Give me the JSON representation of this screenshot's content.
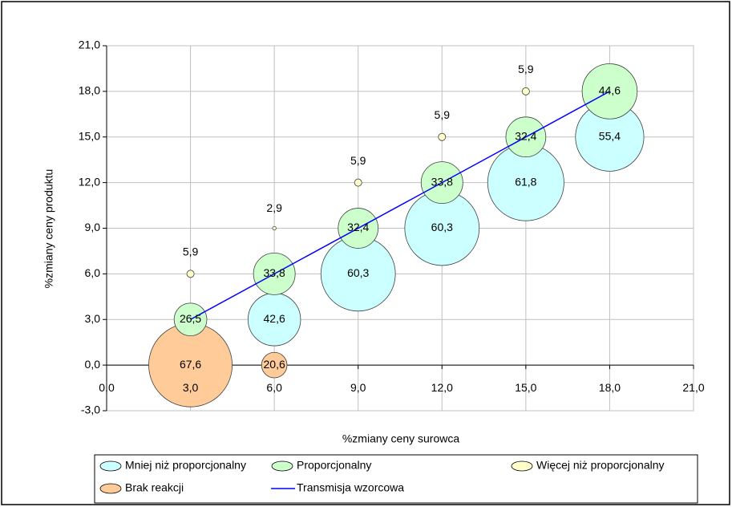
{
  "chart_data": {
    "type": "bubble",
    "x_label": "%zmiany ceny surowca",
    "y_label": "%zmiany ceny produktu",
    "xlim": [
      0,
      21
    ],
    "ylim": [
      -3,
      21
    ],
    "xticks": [
      {
        "value": 0,
        "label": "0,0"
      },
      {
        "value": 3,
        "label": "3,0"
      },
      {
        "value": 6,
        "label": "6,0"
      },
      {
        "value": 9,
        "label": "9,0"
      },
      {
        "value": 12,
        "label": "12,0"
      },
      {
        "value": 15,
        "label": "15,0"
      },
      {
        "value": 18,
        "label": "18,0"
      },
      {
        "value": 21,
        "label": "21,0"
      }
    ],
    "yticks": [
      {
        "value": -3,
        "label": "-3,0"
      },
      {
        "value": 0,
        "label": "0,0"
      },
      {
        "value": 3,
        "label": "3,0"
      },
      {
        "value": 6,
        "label": "6,0"
      },
      {
        "value": 9,
        "label": "9,0"
      },
      {
        "value": 12,
        "label": "12,0"
      },
      {
        "value": 15,
        "label": "15,0"
      },
      {
        "value": 18,
        "label": "18,0"
      },
      {
        "value": 21,
        "label": "21,0"
      }
    ],
    "grid": true,
    "legend": "bottom",
    "series": [
      {
        "name": "Mniej niż proporcjonalny",
        "color": "#ccffff",
        "x": [
          6,
          9,
          12,
          15,
          18
        ],
        "values": [
          3,
          6,
          9,
          12,
          15
        ],
        "sizes": [
          42.6,
          60.3,
          60.3,
          61.8,
          55.4
        ],
        "value_labels": [
          "42,6",
          "60,3",
          "60,3",
          "61,8",
          "55,4"
        ]
      },
      {
        "name": "Proporcjonalny",
        "color": "#ccffcc",
        "x": [
          3,
          6,
          9,
          12,
          15,
          18
        ],
        "values": [
          3,
          6,
          9,
          12,
          15,
          18
        ],
        "sizes": [
          26.5,
          33.8,
          32.4,
          33.8,
          32.4,
          44.6
        ],
        "value_labels": [
          "26,5",
          "33,8",
          "32,4",
          "33,8",
          "32,4",
          "44,6"
        ]
      },
      {
        "name": "Więcej niż proporcjonalny",
        "color": "#ffffcc",
        "x": [
          3,
          6,
          9,
          12,
          15
        ],
        "values": [
          6,
          9,
          12,
          15,
          18
        ],
        "sizes": [
          5.9,
          2.9,
          5.9,
          5.9,
          5.9
        ],
        "value_labels": [
          "5,9",
          "2,9",
          "5,9",
          "5,9",
          "5,9"
        ]
      },
      {
        "name": "Brak reakcji",
        "color": "#ffcc99",
        "x": [
          3,
          6
        ],
        "values": [
          0,
          0
        ],
        "sizes": [
          67.6,
          20.6
        ],
        "value_labels": [
          "67,6",
          "20,6"
        ]
      },
      {
        "name": "Transmisja wzorcowa",
        "type": "line",
        "color": "#0000ff",
        "x": [
          3,
          18
        ],
        "values": [
          3,
          18
        ]
      }
    ]
  }
}
